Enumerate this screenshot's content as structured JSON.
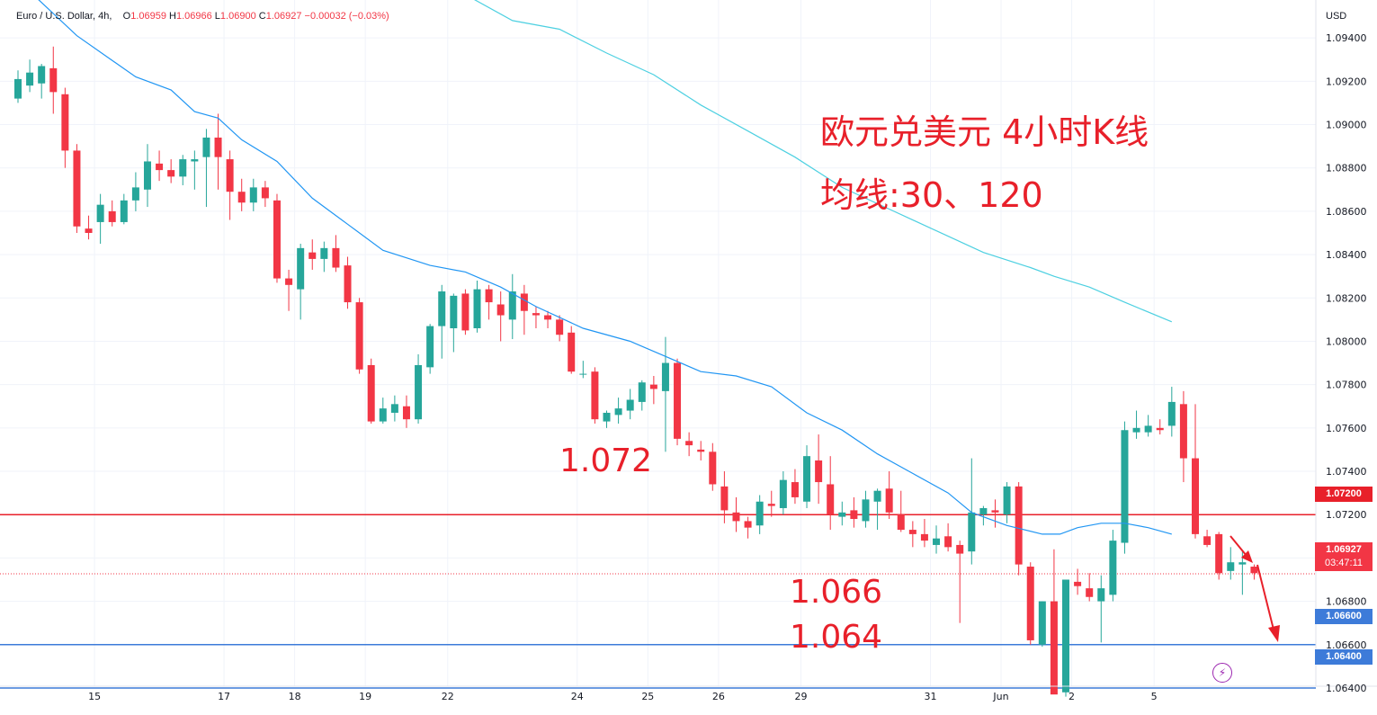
{
  "legend": {
    "symbol": "Euro / U.S. Dollar, 4h,",
    "open_label": "O",
    "open": "1.06959",
    "high_label": "H",
    "high": "1.06966",
    "low_label": "L",
    "low": "1.06900",
    "close_label": "C",
    "close": "1.06927",
    "change": "−0.00032 (−0.03%)"
  },
  "currency": "USD",
  "annotations": {
    "title_line1": "欧元兑美元 4小时K线",
    "title_line2": "均线:30、120",
    "level_1072": "1.072",
    "level_1066": "1.066",
    "level_1064": "1.064"
  },
  "price_tags": {
    "line_1072": "1.07200",
    "current_price": "1.06927",
    "countdown": "03:47:11",
    "line_1066": "1.06600",
    "line_1064": "1.06400"
  },
  "colors": {
    "up": "#26a69a",
    "down": "#f23645",
    "ma30": "#2196f3",
    "ma120": "#4dd0e1",
    "resistance": "#e8202a",
    "support": "#3d7bd9",
    "annotation": "#e8202a"
  },
  "icons": {
    "alert": "lightning-bolt-icon",
    "forecast_arrow": "red-down-arrow"
  },
  "chart_data": {
    "type": "candlestick",
    "title": "欧元兑美元 4小时K线",
    "ylim": [
      1.0635,
      1.0955
    ],
    "y_ticks": [
      1.094,
      1.092,
      1.09,
      1.088,
      1.086,
      1.084,
      1.082,
      1.08,
      1.078,
      1.076,
      1.074,
      1.072,
      1.07,
      1.068,
      1.066,
      1.064
    ],
    "y_tick_labels": [
      "1.09400",
      "1.09200",
      "1.09000",
      "1.08800",
      "1.08600",
      "1.08400",
      "1.08200",
      "1.08000",
      "1.07800",
      "1.07600",
      "1.07400",
      "1.07200",
      "1.07000",
      "1.06800",
      "1.06600",
      "1.06400"
    ],
    "x_labels": [
      {
        "label": "15",
        "index": 6.5
      },
      {
        "label": "17",
        "index": 17.5
      },
      {
        "label": "18",
        "index": 23.5
      },
      {
        "label": "19",
        "index": 29.5
      },
      {
        "label": "22",
        "index": 36.5
      },
      {
        "label": "24",
        "index": 47.5
      },
      {
        "label": "25",
        "index": 53.5
      },
      {
        "label": "26",
        "index": 59.5
      },
      {
        "label": "29",
        "index": 66.5
      },
      {
        "label": "31",
        "index": 77.5
      },
      {
        "label": "Jun",
        "index": 83.5
      },
      {
        "label": "2",
        "index": 89.5
      },
      {
        "label": "5",
        "index": 96.5
      }
    ],
    "candles": [
      [
        1.0912,
        1.0925,
        1.091,
        1.0921
      ],
      [
        1.0918,
        1.093,
        1.0915,
        1.0924
      ],
      [
        1.0919,
        1.0928,
        1.0912,
        1.0927
      ],
      [
        1.0926,
        1.0936,
        1.0905,
        1.0915
      ],
      [
        1.0914,
        1.0917,
        1.088,
        1.0888
      ],
      [
        1.0888,
        1.0891,
        1.085,
        1.0853
      ],
      [
        1.0852,
        1.0858,
        1.0847,
        1.085
      ],
      [
        1.0855,
        1.0868,
        1.0845,
        1.0863
      ],
      [
        1.086,
        1.0865,
        1.0853,
        1.0855
      ],
      [
        1.0855,
        1.0868,
        1.0854,
        1.0865
      ],
      [
        1.0865,
        1.0878,
        1.086,
        1.0871
      ],
      [
        1.087,
        1.0891,
        1.0862,
        1.0883
      ],
      [
        1.0882,
        1.0888,
        1.0874,
        1.0879
      ],
      [
        1.0879,
        1.0884,
        1.0873,
        1.0876
      ],
      [
        1.0876,
        1.0886,
        1.0872,
        1.0884
      ],
      [
        1.0883,
        1.0888,
        1.087,
        1.0884
      ],
      [
        1.0885,
        1.0898,
        1.0862,
        1.0894
      ],
      [
        1.0894,
        1.0905,
        1.087,
        1.0885
      ],
      [
        1.0884,
        1.0888,
        1.0856,
        1.0869
      ],
      [
        1.0869,
        1.0875,
        1.086,
        1.0864
      ],
      [
        1.0864,
        1.0875,
        1.086,
        1.0871
      ],
      [
        1.0871,
        1.0874,
        1.0862,
        1.0866
      ],
      [
        1.0865,
        1.0868,
        1.0827,
        1.0829
      ],
      [
        1.0829,
        1.0833,
        1.0814,
        1.0826
      ],
      [
        1.0824,
        1.0845,
        1.081,
        1.0843
      ],
      [
        1.0841,
        1.0847,
        1.0833,
        1.0838
      ],
      [
        1.0838,
        1.0846,
        1.0832,
        1.0843
      ],
      [
        1.0843,
        1.0849,
        1.0832,
        1.0834
      ],
      [
        1.0835,
        1.0839,
        1.0815,
        1.0818
      ],
      [
        1.0818,
        1.082,
        1.0785,
        1.0787
      ],
      [
        1.0789,
        1.0792,
        1.0762,
        1.0763
      ],
      [
        1.0763,
        1.0774,
        1.0762,
        1.0769
      ],
      [
        1.0767,
        1.0775,
        1.0763,
        1.0771
      ],
      [
        1.077,
        1.0775,
        1.076,
        1.0764
      ],
      [
        1.0764,
        1.0794,
        1.0762,
        1.0789
      ],
      [
        1.0788,
        1.0808,
        1.0785,
        1.0807
      ],
      [
        1.0807,
        1.0826,
        1.0792,
        1.0823
      ],
      [
        1.0806,
        1.0822,
        1.0795,
        1.0821
      ],
      [
        1.0822,
        1.0824,
        1.0803,
        1.0805
      ],
      [
        1.0806,
        1.0828,
        1.0804,
        1.0824
      ],
      [
        1.0824,
        1.0826,
        1.081,
        1.0818
      ],
      [
        1.0817,
        1.0823,
        1.08,
        1.0812
      ],
      [
        1.081,
        1.0831,
        1.0801,
        1.0823
      ],
      [
        1.0822,
        1.0826,
        1.0803,
        1.0814
      ],
      [
        1.0813,
        1.0816,
        1.0806,
        1.0812
      ],
      [
        1.0812,
        1.0814,
        1.0806,
        1.081
      ],
      [
        1.081,
        1.0812,
        1.08,
        1.0803
      ],
      [
        1.0804,
        1.0807,
        1.0785,
        1.0786
      ],
      [
        1.0785,
        1.0791,
        1.0783,
        1.0785
      ],
      [
        1.0786,
        1.0788,
        1.0762,
        1.0764
      ],
      [
        1.0763,
        1.0768,
        1.076,
        1.0767
      ],
      [
        1.0766,
        1.0774,
        1.0762,
        1.0769
      ],
      [
        1.0768,
        1.0778,
        1.0764,
        1.0773
      ],
      [
        1.0772,
        1.0782,
        1.0768,
        1.0781
      ],
      [
        1.078,
        1.0784,
        1.0771,
        1.0778
      ],
      [
        1.0777,
        1.0802,
        1.0749,
        1.079
      ],
      [
        1.079,
        1.0792,
        1.0752,
        1.0755
      ],
      [
        1.0754,
        1.0758,
        1.0747,
        1.0752
      ],
      [
        1.075,
        1.0754,
        1.0745,
        1.0749
      ],
      [
        1.0749,
        1.0753,
        1.0731,
        1.0734
      ],
      [
        1.0733,
        1.074,
        1.0716,
        1.0722
      ],
      [
        1.0721,
        1.0728,
        1.0712,
        1.0717
      ],
      [
        1.0717,
        1.0719,
        1.0709,
        1.0714
      ],
      [
        1.0715,
        1.0729,
        1.0711,
        1.0726
      ],
      [
        1.0725,
        1.0731,
        1.0719,
        1.0724
      ],
      [
        1.0723,
        1.074,
        1.072,
        1.0736
      ],
      [
        1.0735,
        1.0741,
        1.0725,
        1.0728
      ],
      [
        1.0726,
        1.0752,
        1.0723,
        1.0747
      ],
      [
        1.0745,
        1.0757,
        1.0725,
        1.0735
      ],
      [
        1.0734,
        1.0747,
        1.0713,
        1.072
      ],
      [
        1.0719,
        1.0726,
        1.0715,
        1.0721
      ],
      [
        1.0722,
        1.0728,
        1.0714,
        1.0718
      ],
      [
        1.0717,
        1.0731,
        1.0714,
        1.0727
      ],
      [
        1.0726,
        1.0732,
        1.0713,
        1.0731
      ],
      [
        1.0732,
        1.074,
        1.0718,
        1.0721
      ],
      [
        1.072,
        1.0731,
        1.0712,
        1.0713
      ],
      [
        1.0713,
        1.0717,
        1.0705,
        1.0711
      ],
      [
        1.0711,
        1.0718,
        1.0705,
        1.0708
      ],
      [
        1.0706,
        1.0715,
        1.0702,
        1.0709
      ],
      [
        1.071,
        1.0716,
        1.0703,
        1.0705
      ],
      [
        1.0706,
        1.0708,
        1.067,
        1.0702
      ],
      [
        1.0703,
        1.0746,
        1.0697,
        1.0721
      ],
      [
        1.072,
        1.0724,
        1.0715,
        1.0723
      ],
      [
        1.0722,
        1.0727,
        1.0714,
        1.0721
      ],
      [
        1.072,
        1.0735,
        1.0716,
        1.0733
      ],
      [
        1.0733,
        1.0735,
        1.0692,
        1.0697
      ],
      [
        1.0696,
        1.0698,
        1.066,
        1.0662
      ],
      [
        1.066,
        1.068,
        1.0659,
        1.068
      ],
      [
        1.068,
        1.0704,
        1.0638,
        1.0637
      ],
      [
        1.0638,
        1.0689,
        1.0636,
        1.069
      ],
      [
        1.0689,
        1.0695,
        1.0683,
        1.0687
      ],
      [
        1.0686,
        1.0693,
        1.068,
        1.0682
      ],
      [
        1.068,
        1.0692,
        1.0661,
        1.0686
      ],
      [
        1.0683,
        1.0713,
        1.068,
        1.0708
      ],
      [
        1.0707,
        1.0763,
        1.0702,
        1.0759
      ],
      [
        1.0758,
        1.0768,
        1.0755,
        1.076
      ],
      [
        1.0758,
        1.0766,
        1.0756,
        1.0761
      ],
      [
        1.076,
        1.0764,
        1.0757,
        1.0759
      ],
      [
        1.0761,
        1.0779,
        1.0756,
        1.0772
      ],
      [
        1.0771,
        1.0777,
        1.0735,
        1.0746
      ],
      [
        1.0746,
        1.0771,
        1.0709,
        1.0711
      ],
      [
        1.071,
        1.0713,
        1.0705,
        1.0706
      ],
      [
        1.0711,
        1.0712,
        1.069,
        1.0693
      ],
      [
        1.0694,
        1.0705,
        1.069,
        1.0698
      ],
      [
        1.0697,
        1.0703,
        1.0683,
        1.0698
      ],
      [
        1.0696,
        1.0697,
        1.069,
        1.0693
      ]
    ],
    "ma30": [
      [
        0.5,
        1.0964
      ],
      [
        5,
        1.0941
      ],
      [
        10,
        1.0922
      ],
      [
        13,
        1.0916
      ],
      [
        15,
        1.0906
      ],
      [
        17,
        1.0903
      ],
      [
        19,
        1.0893
      ],
      [
        22,
        1.0883
      ],
      [
        25,
        1.0866
      ],
      [
        28,
        1.0854
      ],
      [
        31,
        1.0842
      ],
      [
        35,
        1.0835
      ],
      [
        38,
        1.0832
      ],
      [
        41,
        1.0825
      ],
      [
        44,
        1.0816
      ],
      [
        48,
        1.0806
      ],
      [
        52,
        1.08
      ],
      [
        55,
        1.0793
      ],
      [
        58,
        1.0786
      ],
      [
        61,
        1.0784
      ],
      [
        64,
        1.0779
      ],
      [
        67,
        1.0767
      ],
      [
        70,
        1.0759
      ],
      [
        73,
        1.0748
      ],
      [
        76,
        1.0739
      ],
      [
        79,
        1.073
      ],
      [
        81,
        1.0721
      ],
      [
        84,
        1.0715
      ],
      [
        87,
        1.0711
      ],
      [
        88.5,
        1.0711
      ],
      [
        90,
        1.0714
      ],
      [
        92,
        1.0716
      ],
      [
        94,
        1.0716
      ],
      [
        96,
        1.0714
      ],
      [
        98,
        1.0711
      ]
    ],
    "ma120": [
      [
        8,
        1.096
      ],
      [
        20,
        1.096
      ],
      [
        26,
        1.096
      ],
      [
        29,
        1.096
      ],
      [
        32,
        1.096
      ],
      [
        35,
        1.096
      ],
      [
        38,
        1.096
      ],
      [
        42,
        1.0948
      ],
      [
        46,
        1.0944
      ],
      [
        50,
        1.0933
      ],
      [
        54,
        1.0923
      ],
      [
        58,
        1.0909
      ],
      [
        62,
        1.0897
      ],
      [
        66,
        1.0885
      ],
      [
        70,
        1.0871
      ],
      [
        74,
        1.0861
      ],
      [
        78,
        1.0851
      ],
      [
        82,
        1.0841
      ],
      [
        86,
        1.0834
      ],
      [
        88,
        1.083
      ],
      [
        91,
        1.0825
      ],
      [
        94,
        1.0818
      ],
      [
        98,
        1.0809
      ]
    ],
    "h_lines": [
      1.072,
      1.066,
      1.064
    ],
    "current_price": 1.06927
  }
}
